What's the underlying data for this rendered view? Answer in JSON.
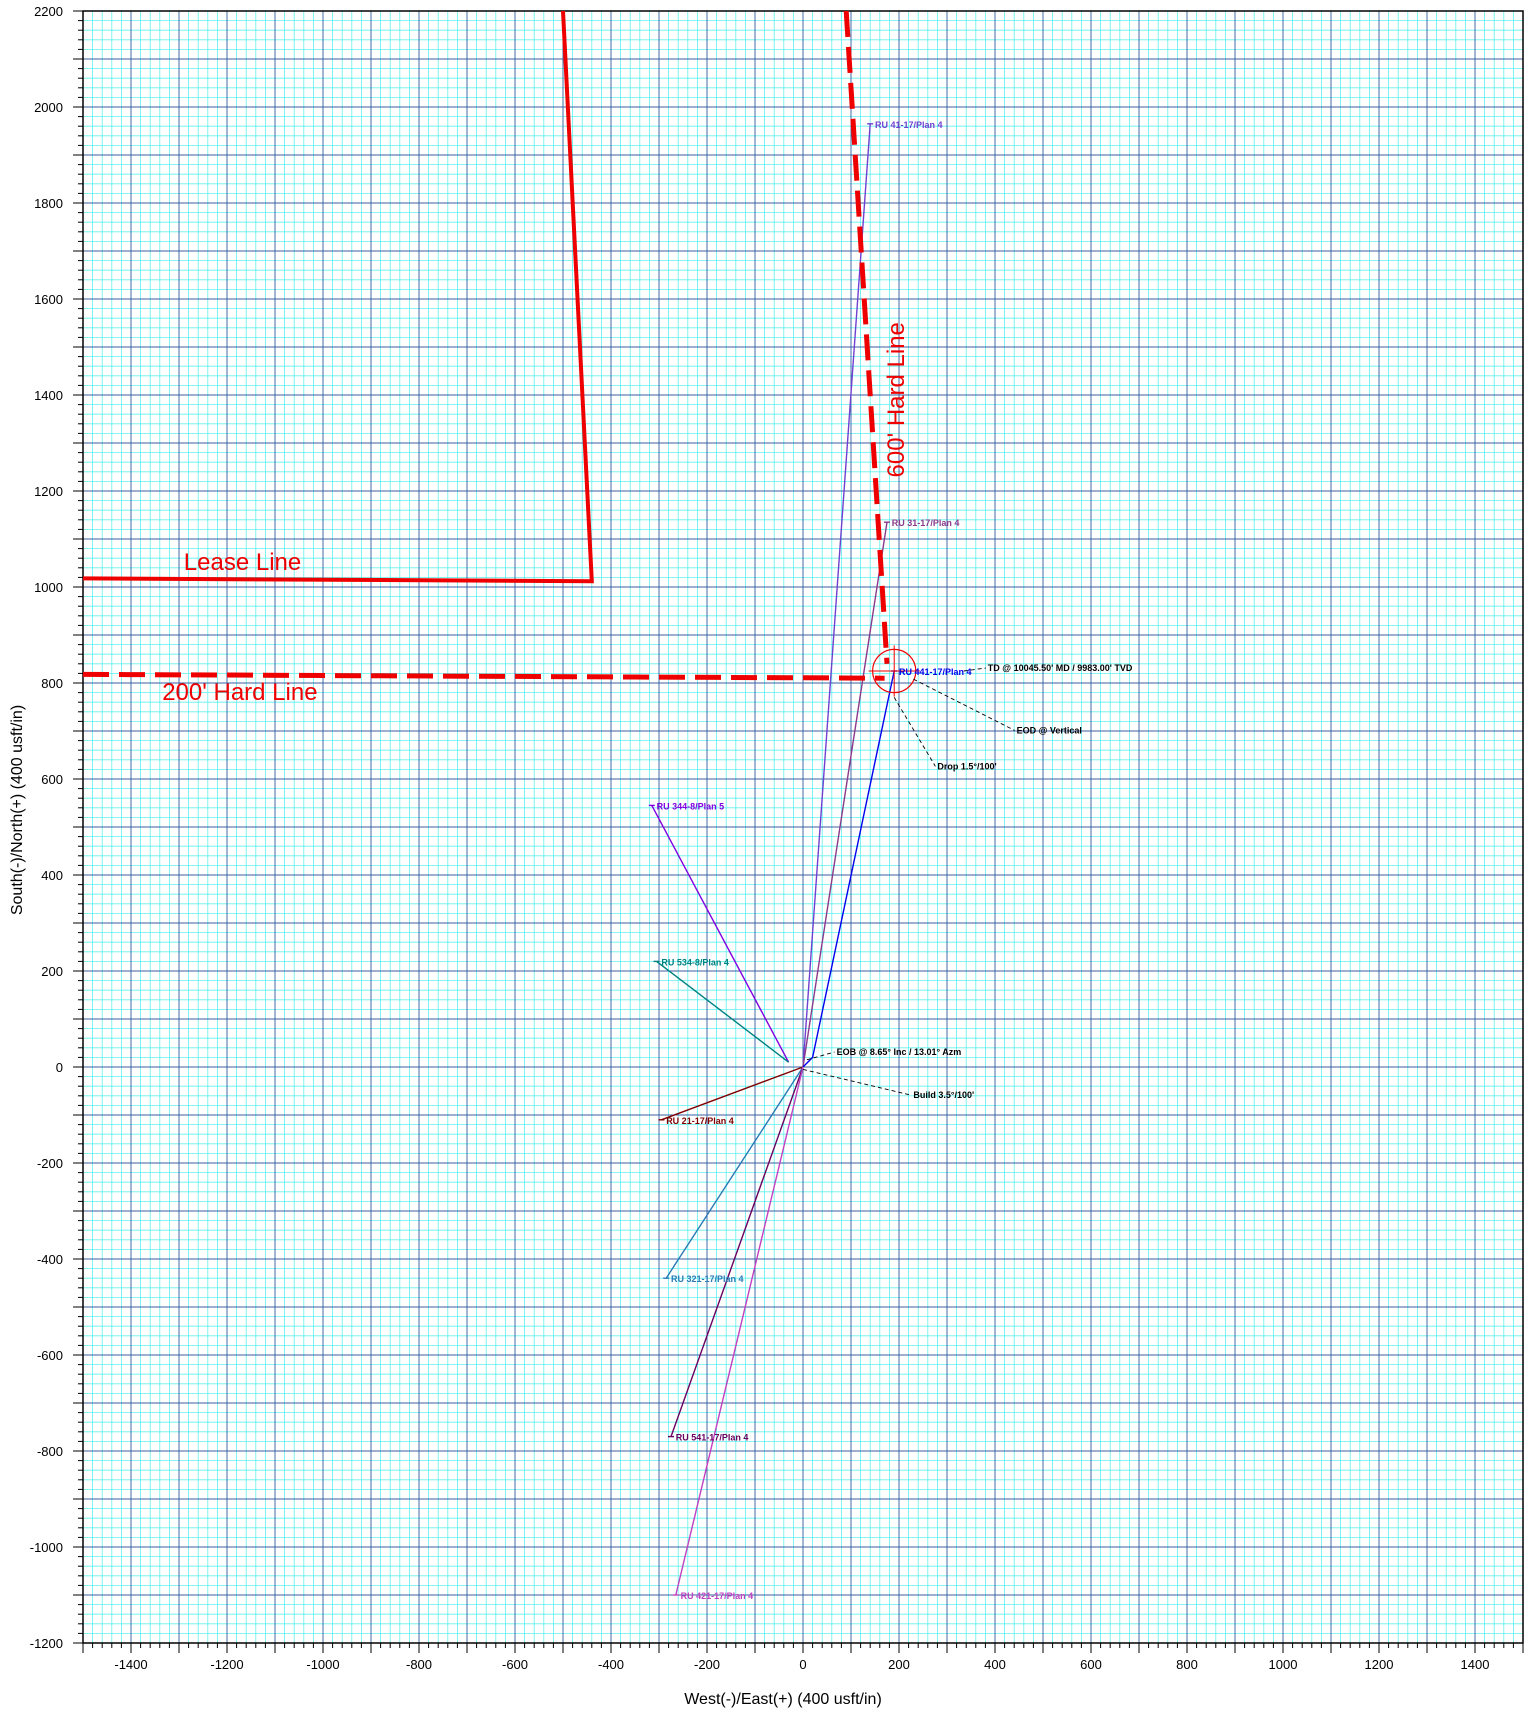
{
  "chart_data": {
    "type": "line",
    "title": "",
    "xlabel": "West(-)/East(+) (400 usft/in)",
    "ylabel": "South(-)/North(+) (400 usft/in)",
    "xlim": [
      -1500,
      1500
    ],
    "ylim": [
      -1200,
      2200
    ],
    "x_ticks": [
      -1400,
      -1200,
      -1000,
      -800,
      -600,
      -400,
      -200,
      0,
      200,
      400,
      600,
      800,
      1000,
      1200,
      1400
    ],
    "y_ticks": [
      -1200,
      -1000,
      -800,
      -600,
      -400,
      -200,
      0,
      200,
      400,
      600,
      800,
      1000,
      1200,
      1400,
      1600,
      1800,
      2000,
      2200
    ],
    "grid": true,
    "colors": {
      "minor_grid": "#5ff0ee",
      "major_grid": "#3a5fa0",
      "boundary": "#ee0000"
    },
    "boundaries": [
      {
        "name": "Lease Line",
        "style": "solid",
        "points": [
          [
            -1500,
            1018
          ],
          [
            -440,
            1012
          ],
          [
            -500,
            2200
          ]
        ]
      },
      {
        "name": "200' Hard Line",
        "style": "dashed",
        "points": [
          [
            -1500,
            818
          ],
          [
            170,
            810
          ]
        ]
      },
      {
        "name": "600' Hard Line",
        "style": "dashed",
        "points": [
          [
            90,
            2200
          ],
          [
            175,
            840
          ]
        ]
      }
    ],
    "boundary_labels": [
      {
        "text": "Lease Line",
        "x": -1290,
        "y": 1035
      },
      {
        "text": "200' Hard Line",
        "x": -1335,
        "y": 765
      },
      {
        "text": "600' Hard Line",
        "x": 210,
        "y": 1390
      }
    ],
    "series": [
      {
        "name": "RU 41-17/Plan 4",
        "color": "#7040d0",
        "points": [
          [
            0,
            0
          ],
          [
            140,
            1965
          ]
        ]
      },
      {
        "name": "RU 31-17/Plan 4",
        "color": "#8a3a8a",
        "points": [
          [
            0,
            0
          ],
          [
            175,
            1135
          ]
        ]
      },
      {
        "name": "RU 441-17/Plan 4",
        "color": "#0000ee",
        "points": [
          [
            0,
            0
          ],
          [
            20,
            20
          ],
          [
            190,
            825
          ]
        ]
      },
      {
        "name": "RU 344-8/Plan 5",
        "color": "#8000e0",
        "points": [
          [
            -30,
            10
          ],
          [
            -315,
            545
          ]
        ]
      },
      {
        "name": "RU 534-8/Plan 4",
        "color": "#008080",
        "points": [
          [
            -30,
            10
          ],
          [
            -305,
            220
          ]
        ]
      },
      {
        "name": "RU 21-17/Plan 4",
        "color": "#800000",
        "points": [
          [
            0,
            0
          ],
          [
            -295,
            -110
          ]
        ]
      },
      {
        "name": "RU 321-17/Plan 4",
        "color": "#2a7ab5",
        "points": [
          [
            0,
            0
          ],
          [
            -285,
            -440
          ]
        ]
      },
      {
        "name": "RU 541-17/Plan 4",
        "color": "#6a0060",
        "points": [
          [
            0,
            0
          ],
          [
            -275,
            -770
          ]
        ]
      },
      {
        "name": "RU 421-17/Plan 4",
        "color": "#c040c0",
        "points": [
          [
            0,
            0
          ],
          [
            -265,
            -1100
          ]
        ]
      }
    ],
    "well_labels": [
      {
        "text": "RU 41-17/Plan 4",
        "x": 150,
        "y": 1963
      },
      {
        "text": "RU 31-17/Plan 4",
        "x": 185,
        "y": 1133
      },
      {
        "text": "RU 441-17/Plan 4",
        "x": 200,
        "y": 823
      },
      {
        "text": "RU 344-8/Plan 5",
        "x": -305,
        "y": 543
      },
      {
        "text": "RU 534-8/Plan 4",
        "x": -295,
        "y": 218
      },
      {
        "text": "RU 21-17/Plan 4",
        "x": -285,
        "y": -112
      },
      {
        "text": "RU 321-17/Plan 4",
        "x": -275,
        "y": -442
      },
      {
        "text": "RU 541-17/Plan 4",
        "x": -265,
        "y": -772
      },
      {
        "text": "RU 421-17/Plan 4",
        "x": -255,
        "y": -1102
      }
    ],
    "annotations": [
      {
        "text": "TD @ 10045.50' MD / 9983.00' TVD",
        "x": 385,
        "y": 825,
        "target": [
          335,
          825
        ]
      },
      {
        "text": "EOD @ Vertical",
        "x": 445,
        "y": 695,
        "target": [
          230,
          808
        ]
      },
      {
        "text": "Drop 1.5°/100'",
        "x": 280,
        "y": 620,
        "target": [
          190,
          770
        ]
      },
      {
        "text": "EOB @ 8.65° Inc / 13.01° Azm",
        "x": 70,
        "y": 25,
        "target": [
          8,
          15
        ]
      },
      {
        "text": "Build 3.5°/100'",
        "x": 230,
        "y": -65,
        "target": [
          0,
          -5
        ]
      }
    ],
    "target_marker": {
      "x": 190,
      "y": 825,
      "radius_ft": 45
    }
  }
}
